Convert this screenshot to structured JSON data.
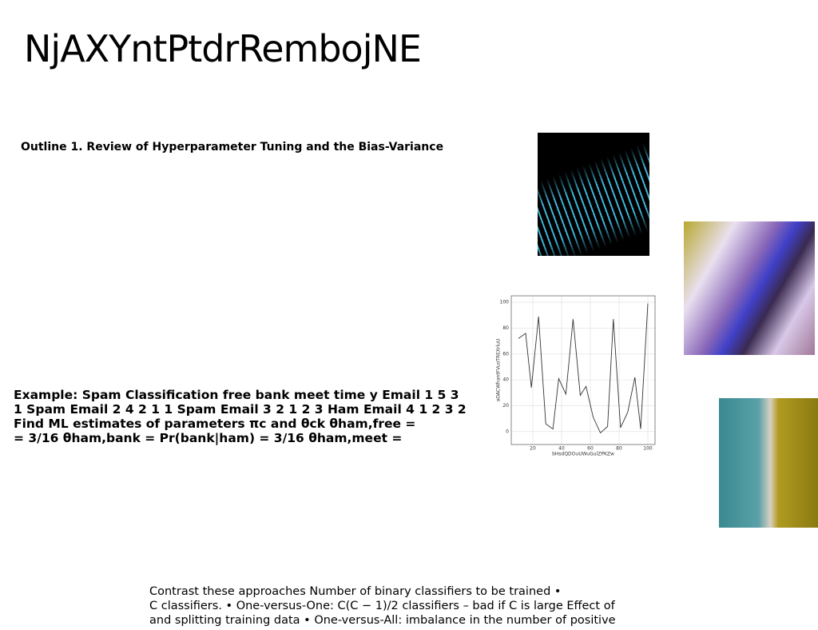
{
  "title": "NjAXYntPtdrRembojNE",
  "outline": "Outline 1. Review of Hyperparameter Tuning and the Bias-Variance",
  "example": [
    "Example: Spam Classification free bank meet time y Email 1 5 3",
    "1 Spam Email 2 4 2 1 1 Spam Email 3 2 1 2 3 Ham Email 4 1 2 3 2",
    "Find ML estimates of parameters πc and θck θham,free =",
    "= 3/16 θham,bank = Pr(bank|ham) = 3/16 θham,meet ="
  ],
  "contrast": [
    "Contrast these approaches Number of binary classifiers to be trained •",
    "C classifiers. • One-versus-One: C(C − 1)/2 classifiers – bad if C is large Effect of",
    "and splitting training data • One-versus-All: imbalance in the number of positive"
  ],
  "chart_data": {
    "type": "line",
    "xlabel": "bHsdQDOuUWuGulZPKZw",
    "ylabel": "aOACWhantFVuoTREXrluU",
    "x": [
      10,
      15,
      19,
      24,
      29,
      34,
      38,
      43,
      48,
      53,
      57,
      62,
      67,
      72,
      76,
      81,
      86,
      91,
      95,
      100
    ],
    "series": [
      {
        "color": "#333333",
        "values": [
          72,
          76,
          34,
          89,
          6,
          2,
          41,
          29,
          87,
          28,
          35,
          11,
          -1,
          4,
          87,
          3,
          15,
          42,
          2,
          99
        ]
      }
    ],
    "xlim": [
      5,
      105
    ],
    "xticks": [
      20,
      40,
      60,
      80,
      100
    ],
    "ylim": [
      -10,
      105
    ],
    "yticks": [
      0,
      20,
      40,
      60,
      80,
      100
    ],
    "grid": true
  }
}
